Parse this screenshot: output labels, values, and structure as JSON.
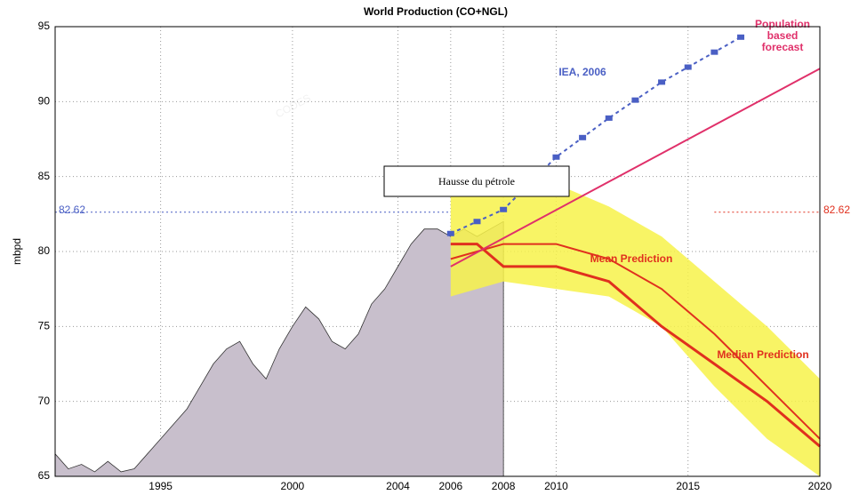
{
  "chart_data": {
    "type": "line",
    "title": "World Production (CO+NGL)",
    "ylabel": "mbpd",
    "watermark": "CODES",
    "xlim": [
      1991,
      2020
    ],
    "ylim": [
      65,
      95
    ],
    "xticks": [
      1995,
      2000,
      2004,
      2006,
      2008,
      2010,
      2015,
      2020
    ],
    "yticks": [
      65,
      70,
      75,
      80,
      85,
      90,
      95
    ],
    "grid": true,
    "reference_value": 82.62,
    "history": {
      "name": "World production",
      "color": "#c8bfcc",
      "x": [
        1991,
        1991.5,
        1992,
        1992.5,
        1993,
        1993.5,
        1994,
        1994.5,
        1995,
        1995.5,
        1996,
        1996.5,
        1997,
        1997.5,
        1998,
        1998.5,
        1999,
        1999.5,
        2000,
        2000.5,
        2001,
        2001.5,
        2002,
        2002.5,
        2003,
        2003.5,
        2004,
        2004.5,
        2005,
        2005.5,
        2006,
        2006.5,
        2007,
        2007.5,
        2008
      ],
      "values": [
        66.5,
        65.5,
        65.8,
        65.3,
        66,
        65.3,
        65.5,
        66.5,
        67.5,
        68.5,
        69.5,
        71,
        72.5,
        73.5,
        74,
        72.5,
        71.5,
        73.5,
        75,
        76.3,
        75.5,
        74,
        73.5,
        74.5,
        76.5,
        77.5,
        79,
        80.5,
        81.5,
        81.5,
        81,
        81.5,
        81,
        81.5,
        82
      ]
    },
    "band": {
      "color": "#f7f24a",
      "x": [
        2006,
        2008,
        2010,
        2012,
        2014,
        2016,
        2018,
        2020
      ],
      "upper": [
        84.5,
        84.5,
        84.5,
        83,
        81,
        78,
        75,
        71.5
      ],
      "lower": [
        77,
        78,
        77.5,
        77,
        75,
        71,
        67.5,
        65
      ]
    },
    "series": [
      {
        "name": "Mean Prediction",
        "color": "#e0301e",
        "x": [
          2006,
          2008,
          2010,
          2012,
          2014,
          2016,
          2018,
          2020
        ],
        "values": [
          79.5,
          80.5,
          80.5,
          79.5,
          77.5,
          74.5,
          71,
          67.5
        ]
      },
      {
        "name": "Median Prediction",
        "color": "#e0301e",
        "x": [
          2006,
          2007,
          2008,
          2010,
          2012,
          2014,
          2016,
          2018,
          2020
        ],
        "values": [
          80.5,
          80.5,
          79,
          79,
          78,
          75,
          72.5,
          70,
          67
        ]
      },
      {
        "name": "IEA, 2006",
        "color": "#4a5fc4",
        "x": [
          2006,
          2007,
          2008,
          2010,
          2011,
          2012,
          2013,
          2014,
          2015,
          2016,
          2017
        ],
        "values": [
          81.2,
          82,
          82.8,
          86.3,
          87.6,
          88.9,
          90.1,
          91.3,
          92.3,
          93.3,
          94.3
        ]
      },
      {
        "name": [
          "Population",
          "based",
          "forecast"
        ],
        "color": "#e0306a",
        "x": [
          2006,
          2020
        ],
        "values": [
          79,
          92.2
        ]
      }
    ],
    "annotation": "Hausse du pétrole"
  }
}
